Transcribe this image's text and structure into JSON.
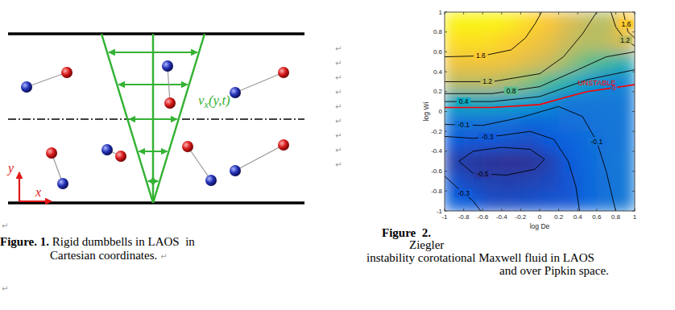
{
  "paragraph_mark": "↵",
  "figure1": {
    "label": "Figure. 1.",
    "caption_lines": [
      "Rigid dumbbells in LAOS  in",
      "Cartesian coordinates."
    ],
    "velocity_label": {
      "main": "v",
      "sub": "x",
      "rest": "(y,t)"
    },
    "axis_labels": {
      "x": "x",
      "y": "y"
    }
  },
  "figure2": {
    "label": "Figure  2.",
    "caption_lines": [
      "Ziegler",
      "instability corotational Maxwell fluid in LAOS",
      "and over Pipkin space."
    ]
  },
  "chart_data": {
    "type": "contour",
    "x_label": "log De",
    "y_label": "log Wi",
    "xlim": [
      -1,
      1
    ],
    "ylim": [
      -1,
      1
    ],
    "xticks": [
      -1,
      -0.8,
      -0.6,
      -0.4,
      -0.2,
      0,
      0.2,
      0.4,
      0.6,
      0.8,
      1
    ],
    "yticks": [
      -1,
      -0.8,
      -0.6,
      -0.4,
      -0.2,
      0,
      0.2,
      0.4,
      0.6,
      0.8,
      1
    ],
    "heatmap": {
      "x": [
        -0.9,
        -0.7,
        -0.5,
        -0.3,
        -0.1,
        0.1,
        0.3,
        0.5,
        0.7,
        0.9
      ],
      "y": [
        -0.9,
        -0.7,
        -0.5,
        -0.3,
        -0.1,
        0.1,
        0.3,
        0.5,
        0.7,
        0.9
      ],
      "z": [
        [
          -0.22,
          -0.3,
          -0.38,
          -0.38,
          -0.36,
          -0.34,
          -0.32,
          -0.2,
          -0.1,
          -0.04
        ],
        [
          -0.33,
          -0.42,
          -0.45,
          -0.46,
          -0.44,
          -0.4,
          -0.33,
          -0.2,
          -0.1,
          -0.04
        ],
        [
          -0.48,
          -0.52,
          -0.55,
          -0.56,
          -0.54,
          -0.46,
          -0.3,
          -0.18,
          -0.08,
          -0.04
        ],
        [
          -0.3,
          -0.32,
          -0.32,
          -0.35,
          -0.38,
          -0.3,
          -0.24,
          -0.15,
          -0.09,
          -0.05
        ],
        [
          -0.08,
          -0.09,
          -0.1,
          -0.13,
          -0.2,
          -0.16,
          -0.13,
          -0.1,
          -0.08,
          -0.05
        ],
        [
          0.4,
          0.45,
          0.4,
          0.35,
          0.3,
          0.15,
          -0.05,
          -0.07,
          -0.05,
          -0.04
        ],
        [
          1.2,
          1.2,
          1.2,
          1.1,
          0.95,
          0.75,
          0.55,
          0.3,
          0.1,
          0.08
        ],
        [
          1.5,
          1.5,
          1.5,
          1.45,
          1.35,
          1.25,
          1.05,
          0.85,
          0.72,
          0.55
        ],
        [
          1.72,
          1.72,
          1.7,
          1.62,
          1.52,
          1.42,
          1.25,
          1.15,
          1.2,
          1.35
        ],
        [
          1.85,
          1.85,
          1.85,
          1.8,
          1.68,
          1.55,
          1.35,
          1.22,
          1.15,
          1.6
        ]
      ],
      "zlim": [
        -0.6,
        1.9
      ]
    },
    "contours": [
      {
        "level": 1.6,
        "color": "#000000",
        "x": [
          -1,
          -0.6,
          -0.3,
          -0.15,
          -0.05,
          0.02
        ],
        "y": [
          0.55,
          0.56,
          0.62,
          0.74,
          0.88,
          1.0
        ],
        "labels": [
          [
            -0.62,
            0.56
          ]
        ]
      },
      {
        "level": 1.6,
        "color": "#000000",
        "x": [
          0.88,
          0.93,
          1.0
        ],
        "y": [
          1.0,
          0.8,
          0.74
        ],
        "labels": [
          [
            0.91,
            0.88
          ]
        ]
      },
      {
        "level": 1.2,
        "color": "#000000",
        "x": [
          -1,
          -0.5,
          0,
          0.25,
          0.45,
          0.6
        ],
        "y": [
          0.3,
          0.3,
          0.38,
          0.55,
          0.78,
          1.0
        ],
        "labels": [
          [
            -0.55,
            0.3
          ]
        ]
      },
      {
        "level": 1.2,
        "color": "#000000",
        "x": [
          0.75,
          0.8,
          0.9,
          1.0
        ],
        "y": [
          1.0,
          0.85,
          0.72,
          0.66
        ],
        "labels": [
          [
            0.9,
            0.72
          ]
        ]
      },
      {
        "level": 0.8,
        "color": "#000000",
        "x": [
          -1,
          -0.5,
          0,
          0.4,
          0.7,
          1.0
        ],
        "y": [
          0.18,
          0.18,
          0.25,
          0.42,
          0.55,
          0.6
        ],
        "labels": [
          [
            -0.3,
            0.208
          ]
        ]
      },
      {
        "level": 0.4,
        "color": "#000000",
        "x": [
          -1,
          -0.5,
          0,
          0.5,
          1.0
        ],
        "y": [
          0.1,
          0.1,
          0.15,
          0.32,
          0.42
        ],
        "labels": [
          [
            -0.8,
            0.1
          ]
        ]
      },
      {
        "level": 0,
        "color": "#ff0000",
        "x": [
          -1,
          -0.5,
          0,
          0.3,
          0.5,
          1.0
        ],
        "y": [
          0.04,
          0.04,
          0.07,
          0.15,
          0.2,
          0.27
        ],
        "labels": [
          [
            0.78,
            0.235
          ]
        ]
      },
      {
        "level": -0.1,
        "color": "#000000",
        "x": [
          -1,
          -0.6,
          -0.2,
          0.2,
          0.45,
          0.6,
          0.7,
          0.8
        ],
        "y": [
          -0.13,
          -0.14,
          -0.06,
          0.05,
          -0.05,
          -0.3,
          -0.6,
          -1.0
        ],
        "labels": [
          [
            -0.8,
            -0.135
          ],
          [
            0.6,
            -0.3
          ]
        ]
      },
      {
        "level": -0.3,
        "color": "#000000",
        "x": [
          -1,
          -0.7,
          -0.4,
          -0.1,
          0.15,
          0.3,
          0.38,
          0.42
        ],
        "y": [
          -0.25,
          -0.27,
          -0.24,
          -0.2,
          -0.28,
          -0.5,
          -0.75,
          -1.0
        ],
        "labels": [
          [
            -0.55,
            -0.255
          ]
        ]
      },
      {
        "level": -0.3,
        "color": "#000000",
        "x": [
          -1,
          -0.85,
          -0.7,
          -0.62
        ],
        "y": [
          -0.65,
          -0.78,
          -0.9,
          -1.0
        ],
        "labels": [
          [
            -0.8,
            -0.82
          ]
        ]
      },
      {
        "level": -0.5,
        "color": "#000000",
        "x": [
          -0.85,
          -0.7,
          -0.4,
          -0.1,
          0.05,
          -0.05,
          -0.35,
          -0.7,
          -0.85
        ],
        "y": [
          -0.5,
          -0.4,
          -0.36,
          -0.38,
          -0.48,
          -0.58,
          -0.64,
          -0.62,
          -0.5
        ],
        "labels": [
          [
            -0.6,
            -0.63
          ]
        ]
      }
    ],
    "annotations": [
      {
        "text": "UNSTABLE",
        "x": 0.6,
        "y": 0.285,
        "color": "#ff0000"
      }
    ]
  }
}
